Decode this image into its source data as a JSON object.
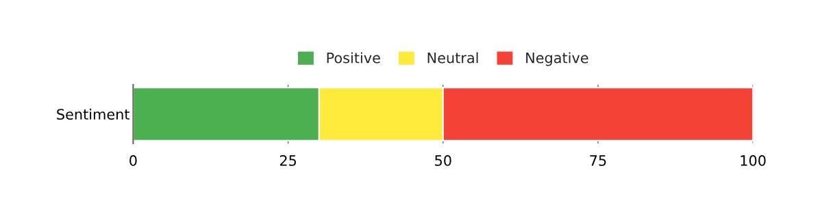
{
  "chart_data": {
    "type": "bar",
    "orientation": "horizontal",
    "stacked": true,
    "categories": [
      "Sentiment"
    ],
    "series": [
      {
        "name": "Positive",
        "color": "#4caf50",
        "values": [
          30
        ]
      },
      {
        "name": "Neutral",
        "color": "#ffeb3b",
        "values": [
          20
        ]
      },
      {
        "name": "Negative",
        "color": "#f44336",
        "values": [
          50
        ]
      }
    ],
    "xlim": [
      0,
      100
    ],
    "xticks": [
      0,
      25,
      50,
      75,
      100
    ],
    "grid": "x",
    "legend": "top"
  }
}
